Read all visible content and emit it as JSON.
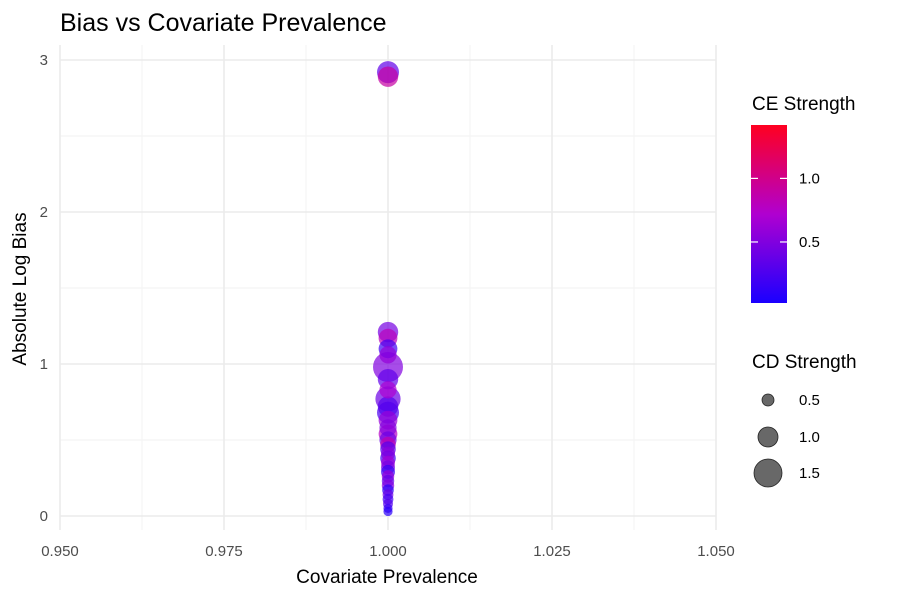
{
  "chart_data": {
    "type": "scatter",
    "title": "Bias vs Covariate Prevalence",
    "xlabel": "Covariate Prevalence",
    "ylabel": "Absolute Log Bias",
    "xlim": [
      0.95,
      1.05
    ],
    "ylim": [
      0,
      3
    ],
    "xticks": [
      "0.950",
      "0.975",
      "1.000",
      "1.025",
      "1.050"
    ],
    "yticks": [
      "0",
      "1",
      "2",
      "3"
    ],
    "grid": true,
    "color_legend": {
      "title": "CE Strength",
      "range": [
        0.02,
        1.42
      ],
      "low_color": "#1a00ff",
      "mid_color": "#b000d0",
      "high_color": "#ff0020",
      "labels": [
        "0.5",
        "1.0"
      ]
    },
    "size_legend": {
      "title": "CD Strength",
      "labels": [
        "0.5",
        "1.0",
        "1.5"
      ],
      "point_color": "#4d4d4d"
    },
    "points": [
      {
        "x": 1.0,
        "y": 2.92,
        "ce": 0.35,
        "cd": 1.0
      },
      {
        "x": 1.0,
        "y": 2.89,
        "ce": 0.9,
        "cd": 0.9
      },
      {
        "x": 1.0,
        "y": 1.21,
        "ce": 0.45,
        "cd": 0.9
      },
      {
        "x": 1.0,
        "y": 1.17,
        "ce": 0.8,
        "cd": 0.8
      },
      {
        "x": 1.0,
        "y": 1.1,
        "ce": 0.2,
        "cd": 0.8
      },
      {
        "x": 1.0,
        "y": 1.06,
        "ce": 0.6,
        "cd": 0.7
      },
      {
        "x": 1.0,
        "y": 0.98,
        "ce": 0.5,
        "cd": 1.5
      },
      {
        "x": 1.0,
        "y": 0.9,
        "ce": 0.35,
        "cd": 0.9
      },
      {
        "x": 1.0,
        "y": 0.83,
        "ce": 0.7,
        "cd": 0.7
      },
      {
        "x": 1.0,
        "y": 0.77,
        "ce": 0.4,
        "cd": 1.2
      },
      {
        "x": 1.0,
        "y": 0.72,
        "ce": 0.3,
        "cd": 0.9
      },
      {
        "x": 1.0,
        "y": 0.68,
        "ce": 0.25,
        "cd": 1.0
      },
      {
        "x": 1.0,
        "y": 0.63,
        "ce": 0.6,
        "cd": 0.8
      },
      {
        "x": 1.0,
        "y": 0.58,
        "ce": 0.5,
        "cd": 0.7
      },
      {
        "x": 1.0,
        "y": 0.54,
        "ce": 0.75,
        "cd": 0.8
      },
      {
        "x": 1.0,
        "y": 0.5,
        "ce": 0.4,
        "cd": 0.7
      },
      {
        "x": 1.0,
        "y": 0.47,
        "ce": 0.85,
        "cd": 0.6
      },
      {
        "x": 1.0,
        "y": 0.44,
        "ce": 0.3,
        "cd": 0.6
      },
      {
        "x": 1.0,
        "y": 0.41,
        "ce": 0.55,
        "cd": 0.5
      },
      {
        "x": 1.0,
        "y": 0.38,
        "ce": 0.2,
        "cd": 0.6
      },
      {
        "x": 1.0,
        "y": 0.35,
        "ce": 0.65,
        "cd": 0.5
      },
      {
        "x": 1.0,
        "y": 0.32,
        "ce": 0.45,
        "cd": 0.5
      },
      {
        "x": 1.0,
        "y": 0.29,
        "ce": 0.15,
        "cd": 0.5
      },
      {
        "x": 1.0,
        "y": 0.26,
        "ce": 0.6,
        "cd": 0.4
      },
      {
        "x": 1.0,
        "y": 0.23,
        "ce": 0.35,
        "cd": 0.4
      },
      {
        "x": 1.0,
        "y": 0.2,
        "ce": 0.5,
        "cd": 0.4
      },
      {
        "x": 1.0,
        "y": 0.17,
        "ce": 0.1,
        "cd": 0.35
      },
      {
        "x": 1.0,
        "y": 0.14,
        "ce": 0.4,
        "cd": 0.3
      },
      {
        "x": 1.0,
        "y": 0.11,
        "ce": 0.2,
        "cd": 0.3
      },
      {
        "x": 1.0,
        "y": 0.08,
        "ce": 0.3,
        "cd": 0.25
      },
      {
        "x": 1.0,
        "y": 0.05,
        "ce": 0.15,
        "cd": 0.2
      },
      {
        "x": 1.0,
        "y": 0.03,
        "ce": 0.1,
        "cd": 0.2
      }
    ]
  }
}
